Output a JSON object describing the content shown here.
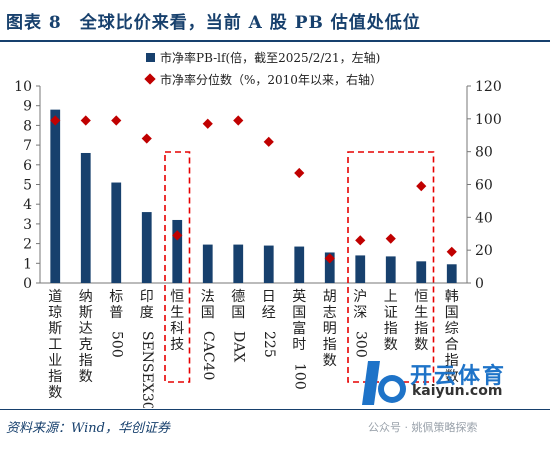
{
  "header": {
    "title": "图表 8　全球比价来看，当前 A 股 PB 估值处低位"
  },
  "footer": {
    "source": "资料来源：Wind，华创证券",
    "watermark_name": "开云体育",
    "watermark_domain": "kaiyun.com",
    "wechat": "公众号 · 姚佩策略探索"
  },
  "colors": {
    "bar": "#17406D",
    "marker": "#C00000",
    "highlight_box": "#E60000",
    "text": "#17406D"
  },
  "chart_data": {
    "type": "bar",
    "categories": [
      "道琼斯工业指数",
      "纳斯达克指数",
      "标普500",
      "印度SENSEX30",
      "恒生科技",
      "法国CAC40",
      "德国DAX",
      "日经225",
      "英国富时100",
      "胡志明指数",
      "沪深300",
      "上证指数",
      "恒生指数",
      "韩国综合指数"
    ],
    "series": [
      {
        "name": "市净率PB-lf(倍，截至2025/2/21，左轴)",
        "axis": "left",
        "type": "bar",
        "values": [
          8.8,
          6.6,
          5.1,
          3.6,
          3.2,
          1.95,
          1.95,
          1.9,
          1.85,
          1.55,
          1.4,
          1.35,
          1.1,
          0.95
        ]
      },
      {
        "name": "市净率分位数（%，2010年以来，右轴）",
        "axis": "right",
        "type": "scatter",
        "values": [
          99,
          99,
          99,
          88,
          29,
          97,
          99,
          86,
          67,
          15,
          26,
          27,
          59,
          19
        ]
      }
    ],
    "left_axis": {
      "ylim": [
        0,
        10
      ],
      "ticks": [
        0,
        1,
        2,
        3,
        4,
        5,
        6,
        7,
        8,
        9,
        10
      ]
    },
    "right_axis": {
      "ylim": [
        0,
        120
      ],
      "ticks": [
        0,
        20,
        40,
        60,
        80,
        100,
        120
      ]
    },
    "highlighted": [
      "恒生科技",
      "沪深300",
      "上证指数",
      "恒生指数"
    ],
    "legend_position": "top-center",
    "grid": false
  }
}
